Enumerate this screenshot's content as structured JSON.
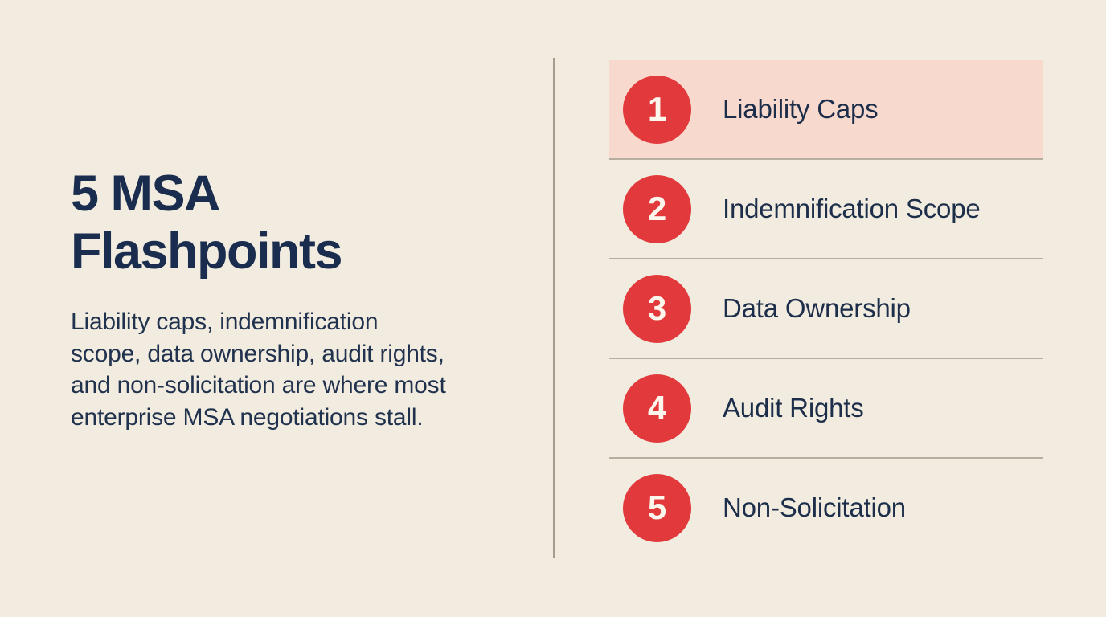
{
  "page": {
    "background_color": "#f1ecdf",
    "divider_color": "#b6ae9e"
  },
  "intro": {
    "title": "5 MSA Flashpoints",
    "title_lines": [
      "5 MSA",
      "Flashpoints"
    ],
    "title_color": "#1b2d4f",
    "subtitle": "Liability caps, indemnification scope, data ownership, audit rights, and non-solicitation are where most enterprise MSA negotiations stall.",
    "subtitle_lines": [
      "Liability caps, indemnification",
      "scope, data ownership, audit rights,",
      "and non-solicitation are where most",
      "enterprise MSA negotiations stall."
    ],
    "subtitle_color": "#21324e"
  },
  "list": {
    "badge_color": "#e23a3c",
    "badge_text_color": "#fdf6ec",
    "highlight_color": "#f8d9ce",
    "items": [
      {
        "number": "1",
        "label": "Liability Caps",
        "highlighted": true
      },
      {
        "number": "2",
        "label": "Indemnification Scope",
        "highlighted": false
      },
      {
        "number": "3",
        "label": "Data Ownership",
        "highlighted": false
      },
      {
        "number": "4",
        "label": "Audit Rights",
        "highlighted": false
      },
      {
        "number": "5",
        "label": "Non-Solicitation",
        "highlighted": false
      }
    ]
  }
}
